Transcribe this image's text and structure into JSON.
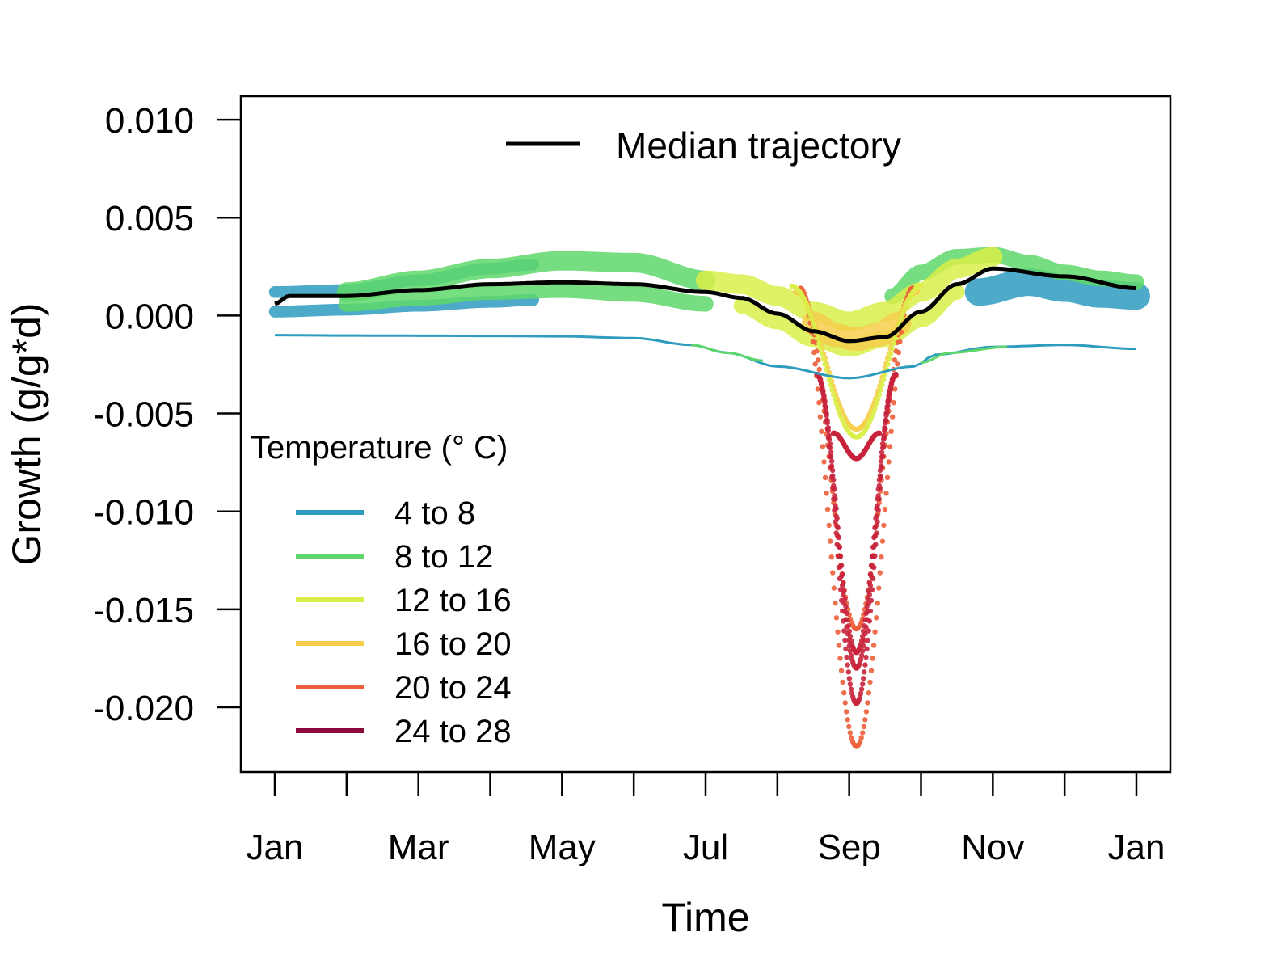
{
  "chart_data": {
    "type": "scatter",
    "xlabel": "Time",
    "ylabel": "Growth (g/g*d)",
    "x_tick_labels": [
      "Jan",
      "Mar",
      "May",
      "Jul",
      "Sep",
      "Nov",
      "Jan"
    ],
    "x_minor_ticks": 13,
    "ylim": [
      -0.0233,
      0.0112
    ],
    "y_ticks": [
      0.01,
      0.005,
      0.0,
      -0.005,
      -0.01,
      -0.015,
      -0.02
    ],
    "y_tick_labels": [
      "0.010",
      "0.005",
      "0.000",
      "-0.005",
      "-0.010",
      "-0.015",
      "-0.020"
    ],
    "x_range_months": [
      0,
      12
    ],
    "grid": false,
    "median_legend": {
      "label": "Median trajectory",
      "color": "#000000",
      "placement": "top-center"
    },
    "legend": {
      "title": "Temperature  (",
      "title_unit": "° C",
      "title_close": ")",
      "placement": "bottom-left",
      "entries": [
        {
          "label": "4 to 8",
          "color": "#2E9CBF"
        },
        {
          "label": "8 to 12",
          "color": "#5ED76A"
        },
        {
          "label": "12 to 16",
          "color": "#D9EE49"
        },
        {
          "label": "16 to 20",
          "color": "#F6CE4B"
        },
        {
          "label": "20 to 24",
          "color": "#EC5F3A"
        },
        {
          "label": "24 to 28",
          "color": "#8C0B3C"
        }
      ]
    },
    "median_series": {
      "name": "Median trajectory",
      "x": [
        0,
        0.2,
        1,
        2,
        3,
        4,
        5,
        6,
        6.5,
        7,
        7.5,
        8,
        8.5,
        9,
        9.5,
        10,
        11,
        12
      ],
      "y": [
        0.0006,
        0.001,
        0.001,
        0.0013,
        0.0016,
        0.0017,
        0.0016,
        0.0012,
        0.0009,
        0.0001,
        -0.0008,
        -0.0013,
        -0.0011,
        0.0002,
        0.0016,
        0.0024,
        0.002,
        0.0014
      ]
    },
    "bands": [
      {
        "name": "4 to 8 upper",
        "color": "#2E9CBF",
        "x": [
          0,
          1,
          2,
          3,
          3.6
        ],
        "y": [
          0.0012,
          0.0013,
          0.0018,
          0.0024,
          0.0026
        ],
        "half_width": 0.0003
      },
      {
        "name": "4 to 8 lower",
        "color": "#2E9CBF",
        "x": [
          0,
          1,
          2,
          3,
          3.6
        ],
        "y": [
          0.0002,
          0.0003,
          0.0005,
          0.0007,
          0.0008
        ],
        "half_width": 0.0003
      },
      {
        "name": "8 to 12 spring",
        "color": "#5ED76A",
        "x": [
          1,
          2,
          3,
          4,
          5,
          6
        ],
        "y": [
          0.0012,
          0.0018,
          0.0024,
          0.0028,
          0.0027,
          0.0018
        ],
        "half_width": 0.0005
      },
      {
        "name": "8 to 12 mid",
        "color": "#5ED76A",
        "x": [
          1,
          2,
          3,
          4,
          5,
          6
        ],
        "y": [
          0.0006,
          0.0009,
          0.0012,
          0.0013,
          0.0011,
          0.0006
        ],
        "half_width": 0.0004
      },
      {
        "name": "4 to 8 autumn",
        "color": "#2E9CBF",
        "x": [
          9.8,
          10.5,
          11,
          11.5,
          12
        ],
        "y": [
          0.0012,
          0.0017,
          0.0014,
          0.0011,
          0.001
        ],
        "half_width": 0.0007
      },
      {
        "name": "8 to 12 autumn",
        "color": "#5ED76A",
        "x": [
          8.6,
          9,
          9.5,
          10,
          10.5,
          11,
          11.5,
          12
        ],
        "y": [
          0.001,
          0.0022,
          0.003,
          0.0031,
          0.0027,
          0.0022,
          0.0019,
          0.0017
        ],
        "half_width": 0.0004
      },
      {
        "name": "12 to 16 summer",
        "color": "#D9EE49",
        "x": [
          6,
          6.5,
          7,
          7.5,
          8,
          8.5,
          9,
          9.5,
          10
        ],
        "y": [
          0.0018,
          0.0016,
          0.001,
          0.0002,
          -0.0003,
          0.0002,
          0.0012,
          0.0024,
          0.003
        ],
        "half_width": 0.0005
      },
      {
        "name": "12 to 16 summer low",
        "color": "#D9EE49",
        "x": [
          6.5,
          7,
          7.5,
          8,
          8.5,
          9,
          9.5
        ],
        "y": [
          0.0005,
          -0.0003,
          -0.0012,
          -0.0017,
          -0.0012,
          -0.0002,
          0.0012
        ],
        "half_width": 0.0004
      },
      {
        "name": "16 to 20 trough",
        "color": "#F6CE4B",
        "x": [
          7.5,
          7.8,
          8.1,
          8.4,
          8.7
        ],
        "y": [
          -0.0004,
          -0.001,
          -0.0012,
          -0.001,
          -0.0004
        ],
        "half_width": 0.0006
      }
    ],
    "thin_lines": [
      {
        "name": "4 to 8 low line",
        "color": "#2E9CBF",
        "x": [
          0,
          1,
          2,
          3,
          4,
          5,
          5.8,
          6.3,
          7,
          8,
          8.9,
          9.2,
          10,
          11,
          12
        ],
        "y": [
          -0.001,
          -0.00102,
          -0.00103,
          -0.00104,
          -0.00106,
          -0.00115,
          -0.0015,
          -0.0019,
          -0.0026,
          -0.0032,
          -0.0026,
          -0.002,
          -0.0016,
          -0.0015,
          -0.0017
        ]
      },
      {
        "name": "8 to 12 low line segment",
        "color": "#5ED76A",
        "x": [
          5.8,
          6.3,
          6.8
        ],
        "y": [
          -0.0015,
          -0.0019,
          -0.0023
        ]
      },
      {
        "name": "8 to 12 autumn low segment",
        "color": "#5ED76A",
        "x": [
          9.0,
          9.4,
          10.2
        ],
        "y": [
          -0.0024,
          -0.0019,
          -0.0016
        ]
      }
    ],
    "dip_curves": [
      {
        "name": "20 to 24 deep",
        "color": "#EC5F3A",
        "center": 8.1,
        "width": 0.78,
        "depth": -0.022,
        "base": 0.0014
      },
      {
        "name": "20 to 24 mid",
        "color": "#EC5F3A",
        "center": 8.1,
        "width": 0.75,
        "depth": -0.016,
        "base": 0.001
      },
      {
        "name": "24 to 28 deep",
        "color": "#C8243C",
        "center": 8.1,
        "width": 0.55,
        "depth": -0.0198,
        "base": -0.003
      },
      {
        "name": "24 to 28 mid",
        "color": "#C8243C",
        "center": 8.1,
        "width": 0.55,
        "depth": -0.018,
        "base": -0.003
      },
      {
        "name": "24 to 28 upper",
        "color": "#C8243C",
        "center": 8.1,
        "width": 0.55,
        "depth": -0.0172,
        "base": -0.003
      },
      {
        "name": "16 to 20 shallow",
        "color": "#F6CE4B",
        "center": 8.1,
        "width": 0.85,
        "depth": -0.0058,
        "base": 0.0012
      },
      {
        "name": "12 to 16 shallow",
        "color": "#D9EE49",
        "center": 8.1,
        "width": 0.9,
        "depth": -0.0062,
        "base": 0.0015
      },
      {
        "name": "24 to 28 shallow",
        "color": "#C8243C",
        "center": 8.1,
        "width": 0.32,
        "depth": -0.0073,
        "base": -0.006
      }
    ]
  }
}
